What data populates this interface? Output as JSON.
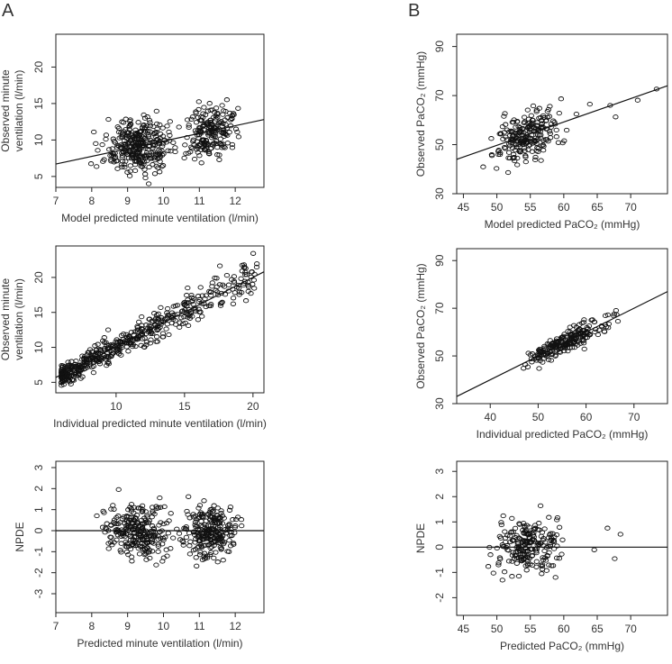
{
  "panel_labels": {
    "a": "A",
    "b": "B"
  },
  "chart_data": [
    {
      "id": "a1",
      "type": "scatter",
      "xlabel": "Model predicted minute ventilation (l/min)",
      "ylabel": [
        "Observed minute",
        "ventilation (l/min)"
      ],
      "xlim": [
        7,
        12.8
      ],
      "ylim": [
        3.5,
        24.5
      ],
      "xticks": [
        7,
        8,
        9,
        10,
        11,
        12
      ],
      "yticks": [
        5,
        10,
        15,
        20
      ],
      "trend_line": {
        "x": [
          7,
          12.8
        ],
        "y": [
          6.7,
          12.8
        ]
      },
      "n_points": 520
    },
    {
      "id": "a2",
      "type": "scatter",
      "xlabel": "Individual predicted  minute ventilation (l/min)",
      "ylabel": [
        "Observed minute",
        "ventilation (l/min)"
      ],
      "xlim": [
        5.6,
        20.8
      ],
      "ylim": [
        3.5,
        24.5
      ],
      "xticks": [
        10,
        15,
        20
      ],
      "yticks": [
        5,
        10,
        15,
        20
      ],
      "trend_line": {
        "x": [
          5.6,
          20.8
        ],
        "y": [
          5.7,
          20.8
        ]
      },
      "n_points": 520
    },
    {
      "id": "a3",
      "type": "scatter",
      "xlabel": "Predicted minute ventilation (l/min)",
      "ylabel": [
        "NPDE"
      ],
      "xlim": [
        7,
        12.8
      ],
      "ylim": [
        -3.9,
        3.3
      ],
      "xticks": [
        7,
        8,
        9,
        10,
        11,
        12
      ],
      "yticks": [
        -3,
        -2,
        -1,
        0,
        1,
        2,
        3
      ],
      "reference_line": 0,
      "n_points": 520
    },
    {
      "id": "b1",
      "type": "scatter",
      "xlabel": "Model predicted PaCO₂ (mmHg)",
      "ylabel": [
        "Observed PaCO₂ (mmHg)"
      ],
      "xlim": [
        44,
        75.5
      ],
      "ylim": [
        30,
        95
      ],
      "xticks": [
        45,
        50,
        55,
        60,
        65,
        70
      ],
      "yticks": [
        30,
        50,
        70,
        90
      ],
      "trend_line": {
        "x": [
          44,
          75.5
        ],
        "y": [
          44,
          74
        ]
      },
      "n_points": 230
    },
    {
      "id": "b2",
      "type": "scatter",
      "xlabel": "Individual predicted PaCO₂ (mmHg)",
      "ylabel": [
        "Observed PaCO₂ (mmHg)"
      ],
      "xlim": [
        33,
        77
      ],
      "ylim": [
        30,
        95
      ],
      "xticks": [
        40,
        50,
        60,
        70
      ],
      "yticks": [
        30,
        50,
        70,
        90
      ],
      "trend_line": {
        "x": [
          33,
          77
        ],
        "y": [
          33,
          77
        ]
      },
      "n_points": 230
    },
    {
      "id": "b3",
      "type": "scatter",
      "xlabel": "Predicted PaCO₂ (mmHg)",
      "ylabel": [
        "NPDE"
      ],
      "xlim": [
        44,
        75.5
      ],
      "ylim": [
        -2.7,
        3.4
      ],
      "xticks": [
        45,
        50,
        55,
        60,
        65,
        70
      ],
      "yticks": [
        -2,
        -1,
        0,
        1,
        2,
        3
      ],
      "reference_line": 0,
      "n_points": 230
    }
  ]
}
